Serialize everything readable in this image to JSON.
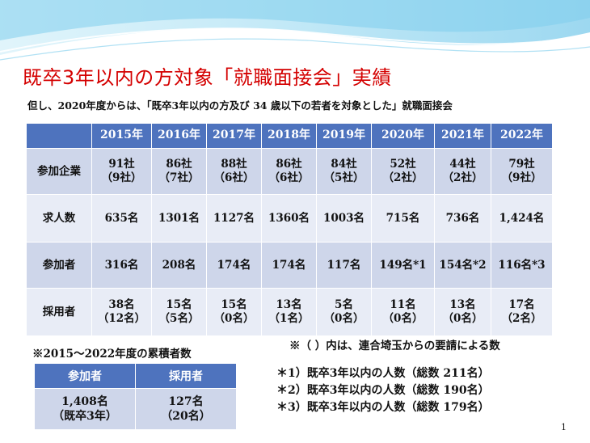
{
  "title": "既卒3年以内の方対象「就職面接会」実績",
  "subtitle": "但し、2020年度からは、「既卒3年以内の方及び 34 歳以下の若者を対象とした」就職面接会",
  "table": {
    "years": [
      "2015年",
      "2016年",
      "2017年",
      "2018年",
      "2019年",
      "2020年",
      "2021年",
      "2022年"
    ],
    "rows": [
      {
        "label": "参加企業",
        "cells": [
          {
            "main": "91社",
            "sub": "（9社）"
          },
          {
            "main": "86社",
            "sub": "（7社）"
          },
          {
            "main": "88社",
            "sub": "（6社）"
          },
          {
            "main": "86社",
            "sub": "（6社）"
          },
          {
            "main": "84社",
            "sub": "（5社）"
          },
          {
            "main": "52社",
            "sub": "（2社）"
          },
          {
            "main": "44社",
            "sub": "（2社）"
          },
          {
            "main": "79社",
            "sub": "（9社）"
          }
        ]
      },
      {
        "label": "求人数",
        "cells": [
          {
            "main": "635名"
          },
          {
            "main": "1301名"
          },
          {
            "main": "1127名"
          },
          {
            "main": "1360名"
          },
          {
            "main": "1003名"
          },
          {
            "main": "715名"
          },
          {
            "main": "736名"
          },
          {
            "main": "1,424名"
          }
        ]
      },
      {
        "label": "参加者",
        "cells": [
          {
            "main": "316名"
          },
          {
            "main": "208名"
          },
          {
            "main": "174名"
          },
          {
            "main": "174名"
          },
          {
            "main": "117名"
          },
          {
            "main": "149名*1"
          },
          {
            "main": "154名*2"
          },
          {
            "main": "116名*3"
          }
        ]
      },
      {
        "label": "採用者",
        "cells": [
          {
            "main": "38名",
            "sub": "（12名）"
          },
          {
            "main": "15名",
            "sub": "（5名）"
          },
          {
            "main": "15名",
            "sub": "（0名）"
          },
          {
            "main": "13名",
            "sub": "（1名）"
          },
          {
            "main": "5名",
            "sub": "（0名）"
          },
          {
            "main": "11名",
            "sub": "（0名）"
          },
          {
            "main": "13名",
            "sub": "（0名）"
          },
          {
            "main": "17名",
            "sub": "（2名）"
          }
        ]
      }
    ]
  },
  "cumulative": {
    "title": "※2015～2022年度の累積者数",
    "headers": [
      "参加者",
      "採用者"
    ],
    "values": [
      {
        "main": "1,408名",
        "sub": "（既卒3年）"
      },
      {
        "main": "127名",
        "sub": "（20名）"
      }
    ]
  },
  "paren_note": "※（ ）内は、連合埼玉からの要請による数",
  "footnotes": [
    "＊1）既卒3年以内の人数（総数 211名）",
    "＊2）既卒3年以内の人数（総数 190名）",
    "＊3）既卒3年以内の人数（総数 179名）"
  ],
  "page_number": "1",
  "colors": {
    "title": "#d40000",
    "header": "#4e73be",
    "cell_dark": "#ced6ea",
    "cell_light": "#e8ecf6"
  }
}
